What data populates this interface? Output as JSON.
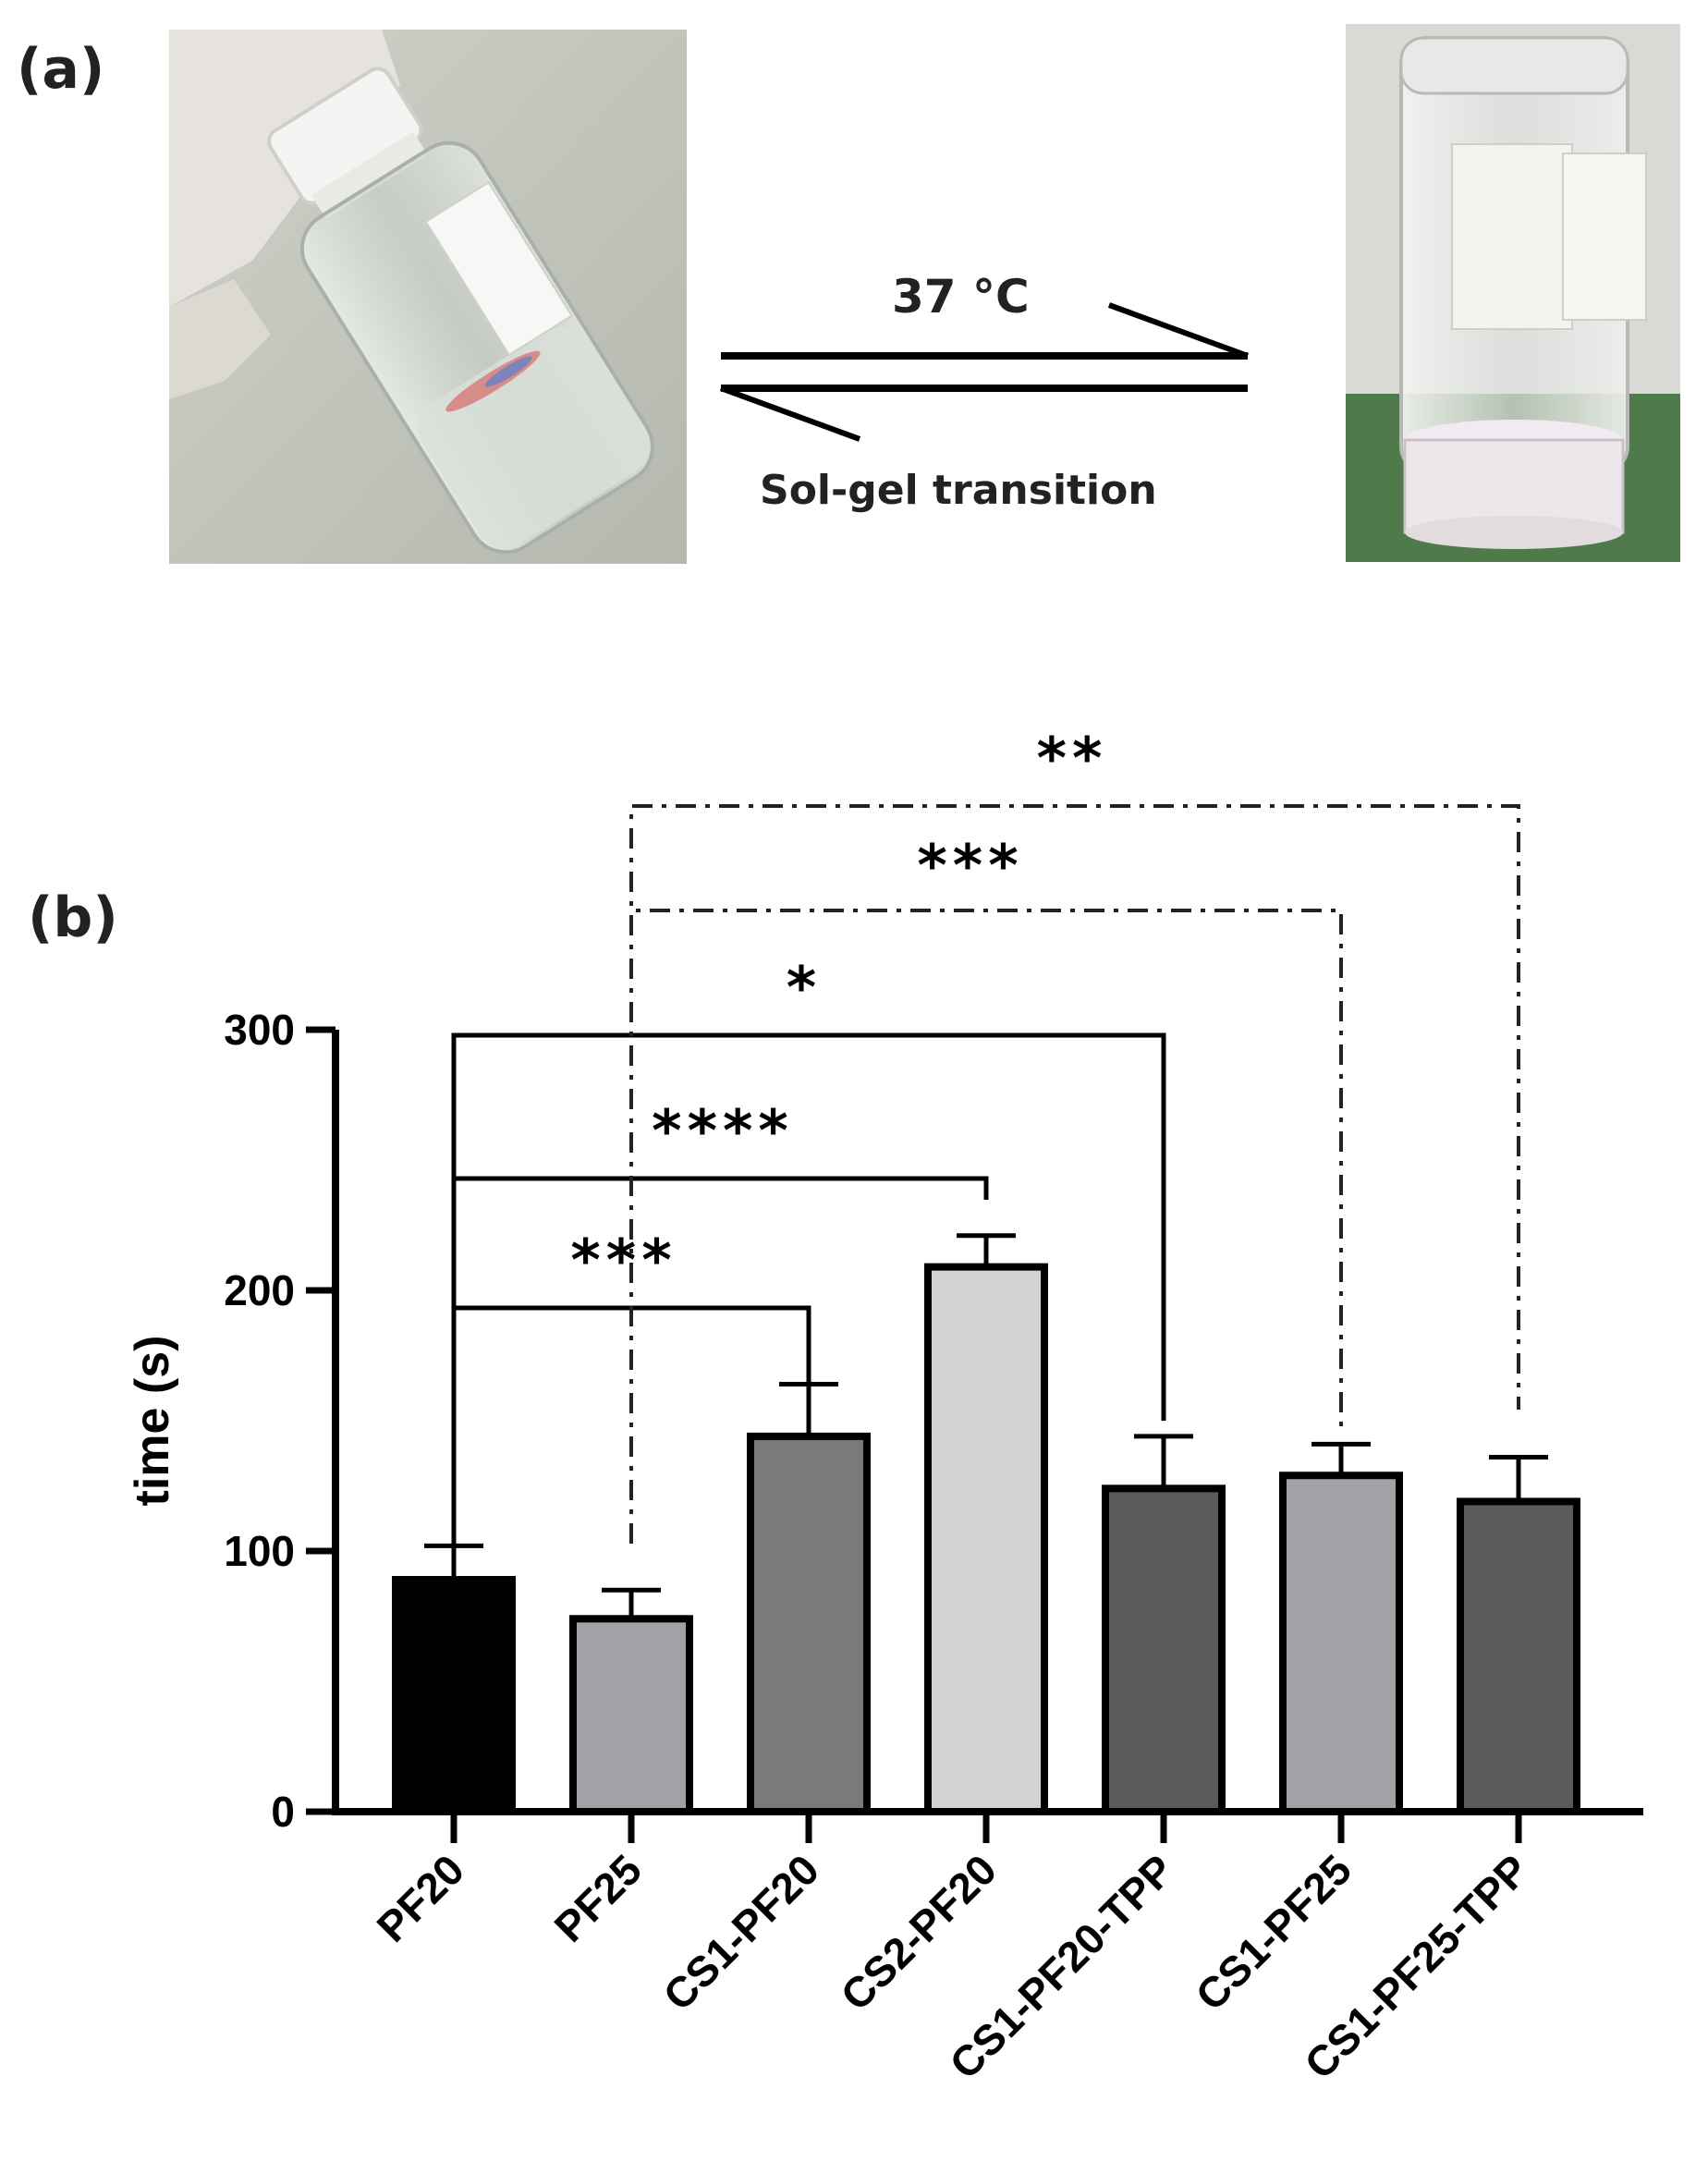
{
  "panel_a": {
    "label": "(a)",
    "arrow_top_label": "37 °C",
    "arrow_bottom_label": "Sol-gel transition"
  },
  "panel_b": {
    "label": "(b)"
  },
  "chart_data": {
    "type": "bar",
    "title": "",
    "xlabel": "",
    "ylabel": "time (s)",
    "ylim": [
      0,
      300
    ],
    "yticks": [
      "0",
      "100",
      "200",
      "300"
    ],
    "categories": [
      "PF20",
      "PF25",
      "CS1-PF20",
      "CS2-PF20",
      "CS1-PF20-TPP",
      "CS1-PF25",
      "CS1-PF25-TPP"
    ],
    "values": [
      89,
      74,
      144,
      209,
      124,
      129,
      119
    ],
    "errors": [
      13,
      11,
      20,
      12,
      20,
      12,
      17
    ],
    "bar_colors": [
      "#000000",
      "#a1a1a6",
      "#7a7a7a",
      "#d3d3d3",
      "#5a5a5a",
      "#a1a1a6",
      "#5a5a5a"
    ],
    "significance": [
      {
        "label": "***",
        "from": "PF20",
        "to": "CS1-PF20",
        "style": "solid"
      },
      {
        "label": "****",
        "from": "PF20",
        "to": "CS2-PF20",
        "style": "solid"
      },
      {
        "label": "*",
        "from": "PF20",
        "to": "CS1-PF20-TPP",
        "style": "solid"
      },
      {
        "label": "***",
        "from": "PF25",
        "to": "CS1-PF25",
        "style": "dash-dot"
      },
      {
        "label": "**",
        "from": "PF25",
        "to": "CS1-PF25-TPP",
        "style": "dash-dot"
      }
    ],
    "grid": false,
    "legend": "none"
  }
}
